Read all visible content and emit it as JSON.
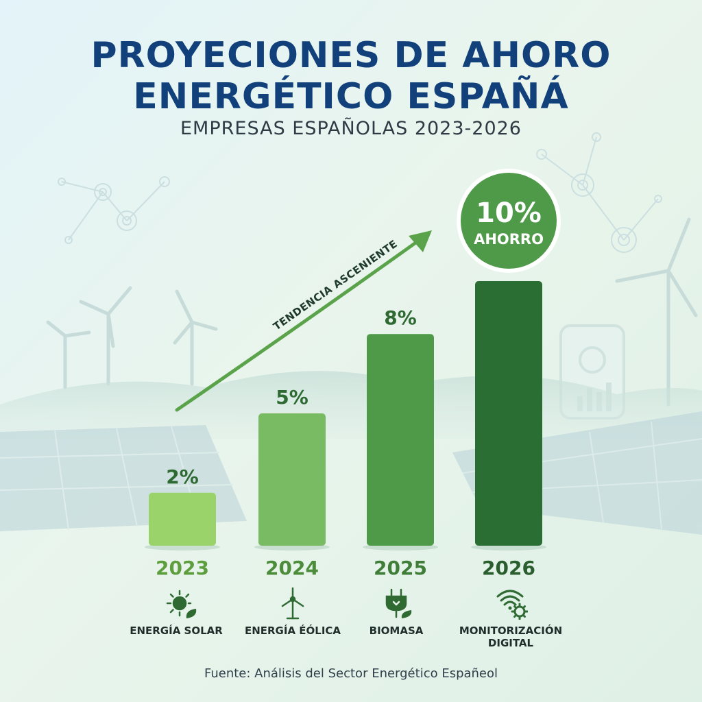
{
  "title": {
    "line1": "PROYECIONES DE AHORO",
    "line2": "ENERGÉTICO ESPAÑÁ"
  },
  "subtitle": "EMPRESAS ESPAÑOLAS 2023-2026",
  "chart_data": {
    "type": "bar",
    "categories": [
      "2023",
      "2024",
      "2025",
      "2026"
    ],
    "values": [
      2,
      5,
      8,
      10
    ],
    "value_labels": [
      "2%",
      "5%",
      "8%",
      "10%"
    ],
    "ylim": [
      0,
      10
    ],
    "grid": false,
    "bar_colors": [
      "#9bd36b",
      "#78bb62",
      "#4e9a48",
      "#2b6e34"
    ],
    "year_colors": [
      "#5f9e3f",
      "#4c8c3a",
      "#3f7d38",
      "#2b5e2e"
    ],
    "trend_label": "TENDENCIA ASCENIENTE",
    "highlight": {
      "value": "10%",
      "label": "AHORRO"
    }
  },
  "categories": [
    {
      "label": "ENERGÍA SOLAR",
      "icon": "sun-leaf-icon"
    },
    {
      "label": "ENERGÍA ÉÓLICA",
      "icon": "wind-turbine-icon"
    },
    {
      "label": "BIOMASA",
      "icon": "plug-leaf-icon"
    },
    {
      "label": "MONITORIZACIÓN\nDIGITAL",
      "icon": "wifi-gear-icon"
    }
  ],
  "source": "Fuente: Análisis del Sector Energético Españeol",
  "colors": {
    "title": "#12407a",
    "icon": "#2f6a33",
    "trend": "#5aa34a",
    "badge": "#4e9a48"
  }
}
